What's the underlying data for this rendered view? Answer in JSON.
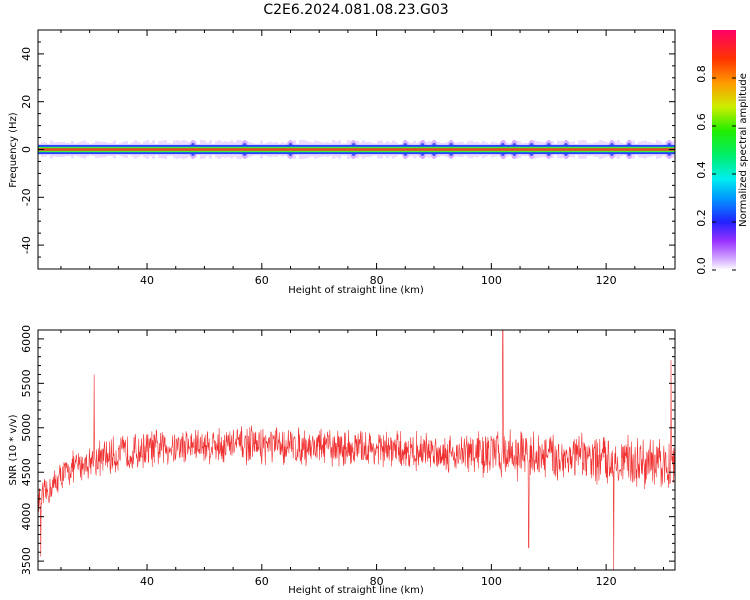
{
  "title": "C2E6.2024.081.08.23.G03",
  "colors": {
    "snr_line": "#f03030",
    "band_core": "#e8402a",
    "band_mid": "#44ee33",
    "band_outer": "#2244ff",
    "band_halo": "#cc99ff",
    "axis": "#000000"
  },
  "chart_data": [
    {
      "id": "spectrogram",
      "type": "heatmap",
      "xlabel": "Height of straight line (km)",
      "ylabel": "Frequency (Hz)",
      "xlim": [
        21,
        132
      ],
      "ylim": [
        -50,
        50
      ],
      "x_ticks": [
        40,
        60,
        80,
        100,
        120
      ],
      "y_ticks": [
        -40,
        -20,
        0,
        20,
        40
      ],
      "band_center_hz": 0,
      "band_halfwidth_hz": 1.5,
      "bright_spots_km": [
        48,
        57,
        65,
        76,
        85,
        88,
        90,
        93,
        102,
        104,
        107,
        110,
        113,
        121,
        124,
        131
      ],
      "colorbar": {
        "label": "Normalized spectral amplitude",
        "range": [
          0,
          1
        ],
        "ticks": [
          "0.0",
          "0.2",
          "0.4",
          "0.6",
          "0.8"
        ]
      }
    },
    {
      "id": "snr",
      "type": "line",
      "xlabel": "Height of straight line (km)",
      "ylabel": "SNR (10 * v/v)",
      "xlim": [
        21,
        132
      ],
      "ylim": [
        3400,
        6100
      ],
      "x_ticks": [
        40,
        60,
        80,
        100,
        120
      ],
      "y_ticks": [
        3500,
        4000,
        4500,
        5000,
        5500,
        6000
      ],
      "series": [
        {
          "x": [
            21,
            23,
            25,
            27,
            30,
            35,
            40,
            45,
            50,
            55,
            60,
            65,
            70,
            75,
            80,
            85,
            90,
            95,
            100,
            102,
            105,
            110,
            115,
            120,
            121,
            125,
            128,
            130,
            132
          ],
          "y": [
            4150,
            4300,
            4450,
            4550,
            4620,
            4700,
            4760,
            4790,
            4800,
            4810,
            4800,
            4790,
            4790,
            4770,
            4760,
            4740,
            4730,
            4710,
            4700,
            4720,
            4700,
            4680,
            4660,
            4640,
            4650,
            4620,
            4580,
            4600,
            4560
          ],
          "peaks": [
            {
              "x": 21.5,
              "y": 3550
            },
            {
              "x": 30.8,
              "y": 5600
            },
            {
              "x": 102,
              "y": 6110
            },
            {
              "x": 106.5,
              "y": 3650
            },
            {
              "x": 121.3,
              "y": 3400
            },
            {
              "x": 131.3,
              "y": 5760
            }
          ]
        }
      ]
    }
  ]
}
